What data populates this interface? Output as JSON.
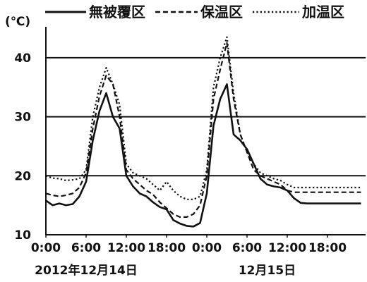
{
  "chart_data": {
    "type": "line",
    "yunit": "(℃)",
    "ylim": [
      10,
      45
    ],
    "yticks": [
      10,
      20,
      30,
      40
    ],
    "grid": "horizontal",
    "legend_position": "top",
    "x_ticks": [
      {
        "label": "0:00",
        "hour": 0
      },
      {
        "label": "6:00",
        "hour": 6
      },
      {
        "label": "12:00",
        "hour": 12
      },
      {
        "label": "18:00",
        "hour": 18
      },
      {
        "label": "0:00",
        "hour": 24
      },
      {
        "label": "6:00",
        "hour": 30
      },
      {
        "label": "12:00",
        "hour": 36
      },
      {
        "label": "18:00",
        "hour": 42
      }
    ],
    "date_labels": [
      {
        "text": "2012年12月14日",
        "hour": 6
      },
      {
        "text": "12月15日",
        "hour": 33
      }
    ],
    "x_hours": [
      0,
      1,
      2,
      3,
      4,
      5,
      6,
      7,
      8,
      9,
      10,
      11,
      12,
      13,
      14,
      15,
      16,
      17,
      18,
      19,
      20,
      21,
      22,
      23,
      24,
      25,
      26,
      27,
      28,
      29,
      30,
      31,
      32,
      33,
      34,
      35,
      36,
      37,
      38,
      39,
      40,
      41,
      42,
      43,
      44,
      45,
      46,
      47
    ],
    "series": [
      {
        "name": "無被覆区",
        "color": "#111111",
        "dash": "solid",
        "values": [
          15.8,
          15.0,
          15.3,
          15.0,
          15.2,
          16.5,
          19.0,
          26.0,
          31.0,
          34.0,
          30.0,
          28.0,
          20.0,
          18.2,
          17.0,
          16.5,
          15.5,
          14.7,
          14.3,
          12.5,
          11.9,
          11.5,
          11.4,
          12.0,
          17.0,
          28.5,
          33.0,
          35.5,
          27.0,
          26.0,
          24.5,
          22.0,
          19.5,
          18.5,
          18.2,
          18.0,
          17.5,
          16.2,
          15.4,
          15.3,
          15.3,
          15.3,
          15.3,
          15.3,
          15.3,
          15.3,
          15.3,
          15.3
        ]
      },
      {
        "name": "保温区",
        "color": "#111111",
        "dash": "dashed",
        "values": [
          17.0,
          16.7,
          16.5,
          16.7,
          17.0,
          18.0,
          20.5,
          28.0,
          33.5,
          37.0,
          35.5,
          30.0,
          21.0,
          19.5,
          18.5,
          17.5,
          16.8,
          15.5,
          14.5,
          13.5,
          13.0,
          13.0,
          13.5,
          15.0,
          20.0,
          33.0,
          38.0,
          42.5,
          33.0,
          27.0,
          24.0,
          21.0,
          20.0,
          19.5,
          19.0,
          18.5,
          17.5,
          17.2,
          17.2,
          17.2,
          17.2,
          17.2,
          17.2,
          17.2,
          17.2,
          17.2,
          17.2,
          17.2
        ]
      },
      {
        "name": "加温区",
        "color": "#111111",
        "dash": "dotted",
        "values": [
          20.0,
          19.6,
          19.5,
          19.2,
          19.3,
          19.5,
          21.0,
          30.0,
          35.0,
          38.3,
          35.5,
          32.0,
          22.0,
          20.5,
          20.0,
          19.5,
          18.5,
          17.5,
          19.0,
          17.5,
          16.5,
          16.0,
          16.0,
          16.5,
          21.0,
          35.0,
          40.0,
          43.5,
          34.0,
          27.0,
          24.0,
          22.0,
          20.5,
          20.0,
          19.5,
          19.2,
          18.5,
          18.0,
          18.0,
          18.0,
          18.0,
          18.0,
          18.0,
          18.0,
          18.0,
          18.0,
          18.0,
          18.0
        ]
      }
    ]
  }
}
